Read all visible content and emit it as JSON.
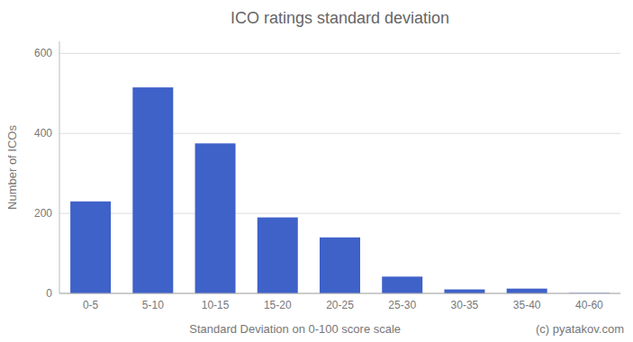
{
  "chart_data": {
    "type": "bar",
    "title": "ICO ratings standard deviation",
    "categories": [
      "0-5",
      "5-10",
      "10-15",
      "15-20",
      "20-25",
      "25-30",
      "30-35",
      "35-40",
      "40-60"
    ],
    "values": [
      230,
      515,
      375,
      190,
      140,
      42,
      10,
      12,
      1
    ],
    "color": "#3F62C9",
    "xlabel": "Standard Deviation on 0-100 score scale",
    "ylabel": "Number of ICOs",
    "copyright": "(c) pyatakov.com",
    "ylim": [
      0,
      630
    ],
    "yticks": [
      0,
      200,
      400,
      600
    ],
    "grid": true
  }
}
